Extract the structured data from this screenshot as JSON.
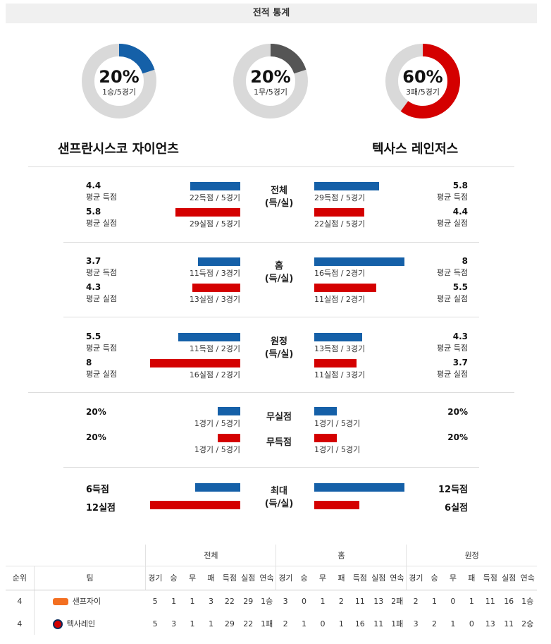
{
  "header": {
    "title": "전적 통계"
  },
  "donuts": [
    {
      "pct": "20%",
      "sub": "1승/5경기",
      "fraction": 0.2,
      "color": "#1560a8"
    },
    {
      "pct": "20%",
      "sub": "1무/5경기",
      "fraction": 0.2,
      "color": "#555555"
    },
    {
      "pct": "60%",
      "sub": "3패/5경기",
      "fraction": 0.6,
      "color": "#d40000"
    }
  ],
  "teams": {
    "left": "샌프란시스코 자이언츠",
    "right": "텍사스 레인저스"
  },
  "sections": [
    {
      "label1": "전체",
      "label2": "(득/실)",
      "left": [
        {
          "value": "4.4",
          "label": "평균 득점",
          "caption": "22득점 / 5경기",
          "level": 5.8
        },
        {
          "value": "5.8",
          "label": "평균 실점",
          "caption": "29실점 / 5경기",
          "level": 7.5
        }
      ],
      "right": [
        {
          "value": "5.8",
          "label": "평균 득점",
          "caption": "29득점 / 5경기",
          "level": 7.5
        },
        {
          "value": "4.4",
          "label": "평균 실점",
          "caption": "22실점 / 5경기",
          "level": 5.8
        }
      ]
    },
    {
      "label1": "홈",
      "label2": "(득/실)",
      "left": [
        {
          "value": "3.7",
          "label": "평균 득점",
          "caption": "11득점 / 3경기",
          "level": 4.9
        },
        {
          "value": "4.3",
          "label": "평균 실점",
          "caption": "13실점 / 3경기",
          "level": 5.6
        }
      ],
      "right": [
        {
          "value": "8",
          "label": "평균 득점",
          "caption": "16득점 / 2경기",
          "level": 10.5
        },
        {
          "value": "5.5",
          "label": "평균 실점",
          "caption": "11실점 / 2경기",
          "level": 7.2
        }
      ]
    },
    {
      "label1": "원정",
      "label2": "(득/실)",
      "left": [
        {
          "value": "5.5",
          "label": "평균 득점",
          "caption": "11득점 / 2경기",
          "level": 7.2
        },
        {
          "value": "8",
          "label": "평균 실점",
          "caption": "16실점 / 2경기",
          "level": 10.5
        }
      ],
      "right": [
        {
          "value": "4.3",
          "label": "평균 득점",
          "caption": "13득점 / 3경기",
          "level": 5.6
        },
        {
          "value": "3.7",
          "label": "평균 실점",
          "caption": "11실점 / 3경기",
          "level": 4.9
        }
      ]
    }
  ],
  "rates": {
    "row1": {
      "label": "무실점",
      "left_value": "20%",
      "left_caption": "1경기 / 5경기",
      "right_value": "20%",
      "right_caption": "1경기 / 5경기"
    },
    "row2": {
      "label": "무득점",
      "left_value": "20%",
      "left_caption": "1경기 / 5경기",
      "right_value": "20%",
      "right_caption": "1경기 / 5경기"
    }
  },
  "max": {
    "label1": "최대",
    "label2": "(득/실)",
    "left_score": "6득점",
    "left_allowed": "12실점",
    "right_score": "12득점",
    "right_allowed": "6실점"
  },
  "standings": {
    "groups": [
      "전체",
      "홈",
      "원정"
    ],
    "rank_header": "순위",
    "team_header": "팀",
    "cols": [
      "경기",
      "승",
      "무",
      "패",
      "득점",
      "실점",
      "연속"
    ],
    "rows": [
      {
        "rank": "4",
        "team": "샌프자이",
        "logo": "giants-logo",
        "total": [
          "5",
          "1",
          "1",
          "3",
          "22",
          "29",
          "1승"
        ],
        "home": [
          "3",
          "0",
          "1",
          "2",
          "11",
          "13",
          "2패"
        ],
        "away": [
          "2",
          "1",
          "0",
          "1",
          "11",
          "16",
          "1승"
        ]
      },
      {
        "rank": "4",
        "team": "텍사레인",
        "logo": "rangers-logo",
        "total": [
          "5",
          "3",
          "1",
          "1",
          "29",
          "22",
          "1패"
        ],
        "home": [
          "2",
          "1",
          "0",
          "1",
          "16",
          "11",
          "1패"
        ],
        "away": [
          "3",
          "2",
          "1",
          "0",
          "13",
          "11",
          "2승"
        ]
      }
    ]
  }
}
